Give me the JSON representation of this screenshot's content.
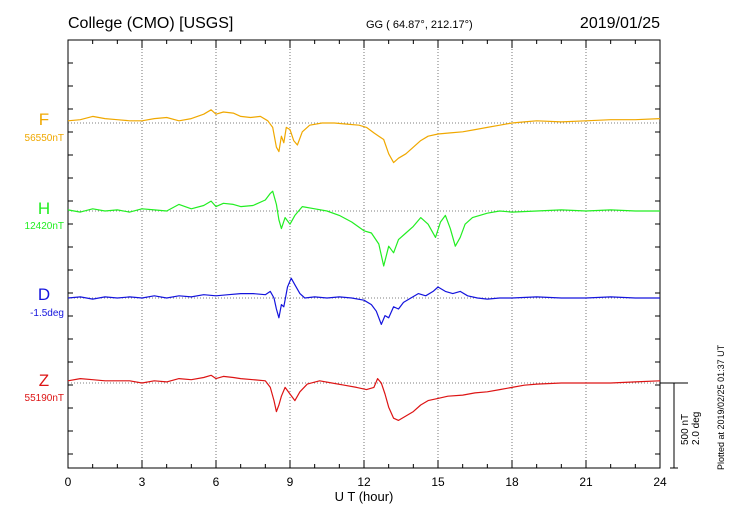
{
  "header": {
    "station": "College (CMO)  [USGS]",
    "coords": "GG ( 64.87°, 212.17°)",
    "date": "2019/01/25"
  },
  "footer": {
    "plotted": "Plotted at 2019/02/25 01:37 UT"
  },
  "chart_data": {
    "type": "line",
    "xlabel": "U T (hour)",
    "xlim": [
      0,
      24
    ],
    "xticks": [
      "0",
      "3",
      "6",
      "9",
      "12",
      "15",
      "18",
      "21",
      "24"
    ],
    "scale_bar": {
      "line1": "500 nT",
      "line2": "2.0 deg"
    },
    "series": [
      {
        "name": "F",
        "baseline_label": "56550nT",
        "color": "#f0a800",
        "points": [
          [
            0,
            0.1
          ],
          [
            0.5,
            0.15
          ],
          [
            1,
            0.3
          ],
          [
            1.5,
            0.2
          ],
          [
            2,
            0.15
          ],
          [
            2.5,
            0.1
          ],
          [
            3,
            0.1
          ],
          [
            3.5,
            0.2
          ],
          [
            4,
            0.25
          ],
          [
            4.5,
            0.1
          ],
          [
            5,
            0.2
          ],
          [
            5.5,
            0.4
          ],
          [
            5.8,
            0.6
          ],
          [
            6,
            0.4
          ],
          [
            6.3,
            0.5
          ],
          [
            6.7,
            0.45
          ],
          [
            7,
            0.3
          ],
          [
            7.4,
            0.25
          ],
          [
            7.8,
            0.3
          ],
          [
            8.1,
            0.1
          ],
          [
            8.3,
            -0.2
          ],
          [
            8.45,
            -1.1
          ],
          [
            8.55,
            -1.3
          ],
          [
            8.65,
            -0.6
          ],
          [
            8.75,
            -0.9
          ],
          [
            8.85,
            -0.2
          ],
          [
            9,
            -0.3
          ],
          [
            9.15,
            -0.8
          ],
          [
            9.3,
            -1.0
          ],
          [
            9.5,
            -0.4
          ],
          [
            9.8,
            -0.1
          ],
          [
            10.3,
            0.0
          ],
          [
            10.8,
            0.0
          ],
          [
            11.3,
            -0.05
          ],
          [
            11.8,
            -0.1
          ],
          [
            12.1,
            -0.2
          ],
          [
            12.4,
            -0.45
          ],
          [
            12.6,
            -0.6
          ],
          [
            12.8,
            -0.75
          ],
          [
            13.0,
            -1.4
          ],
          [
            13.2,
            -1.8
          ],
          [
            13.4,
            -1.6
          ],
          [
            13.7,
            -1.4
          ],
          [
            14.0,
            -1.1
          ],
          [
            14.3,
            -0.8
          ],
          [
            14.6,
            -0.6
          ],
          [
            15.0,
            -0.5
          ],
          [
            15.5,
            -0.45
          ],
          [
            16,
            -0.4
          ],
          [
            16.5,
            -0.3
          ],
          [
            17,
            -0.2
          ],
          [
            17.5,
            -0.1
          ],
          [
            18,
            0.0
          ],
          [
            18.5,
            0.05
          ],
          [
            19,
            0.1
          ],
          [
            20,
            0.05
          ],
          [
            21,
            0.1
          ],
          [
            22,
            0.15
          ],
          [
            23,
            0.15
          ],
          [
            24,
            0.2
          ]
        ]
      },
      {
        "name": "H",
        "baseline_label": "12420nT",
        "color": "#22ee22",
        "points": [
          [
            0,
            0.05
          ],
          [
            0.5,
            -0.05
          ],
          [
            1,
            0.1
          ],
          [
            1.5,
            0.0
          ],
          [
            2,
            0.05
          ],
          [
            2.5,
            -0.05
          ],
          [
            3,
            0.1
          ],
          [
            3.5,
            0.05
          ],
          [
            4,
            0.0
          ],
          [
            4.5,
            0.3
          ],
          [
            5,
            0.1
          ],
          [
            5.5,
            0.25
          ],
          [
            5.8,
            0.45
          ],
          [
            6,
            0.2
          ],
          [
            6.3,
            0.35
          ],
          [
            6.7,
            0.3
          ],
          [
            7,
            0.2
          ],
          [
            7.5,
            0.25
          ],
          [
            8,
            0.5
          ],
          [
            8.2,
            0.8
          ],
          [
            8.3,
            0.9
          ],
          [
            8.45,
            0.3
          ],
          [
            8.55,
            -0.4
          ],
          [
            8.65,
            -0.8
          ],
          [
            8.8,
            -0.3
          ],
          [
            9,
            -0.6
          ],
          [
            9.2,
            -0.2
          ],
          [
            9.5,
            0.2
          ],
          [
            10,
            0.1
          ],
          [
            10.5,
            0.0
          ],
          [
            11,
            -0.2
          ],
          [
            11.5,
            -0.5
          ],
          [
            12,
            -0.9
          ],
          [
            12.3,
            -1.0
          ],
          [
            12.6,
            -1.5
          ],
          [
            12.8,
            -2.5
          ],
          [
            13.0,
            -1.6
          ],
          [
            13.2,
            -1.9
          ],
          [
            13.4,
            -1.3
          ],
          [
            13.7,
            -1.0
          ],
          [
            14.0,
            -0.7
          ],
          [
            14.3,
            -0.3
          ],
          [
            14.6,
            -0.6
          ],
          [
            14.9,
            -1.2
          ],
          [
            15.1,
            -0.5
          ],
          [
            15.3,
            -0.2
          ],
          [
            15.5,
            -0.8
          ],
          [
            15.7,
            -1.6
          ],
          [
            15.9,
            -1.2
          ],
          [
            16.1,
            -0.6
          ],
          [
            16.4,
            -0.3
          ],
          [
            17,
            -0.1
          ],
          [
            17.5,
            0.0
          ],
          [
            18,
            -0.05
          ],
          [
            19,
            0.0
          ],
          [
            20,
            0.05
          ],
          [
            21,
            0.0
          ],
          [
            22,
            0.05
          ],
          [
            23,
            0.0
          ],
          [
            24,
            0.0
          ]
        ]
      },
      {
        "name": "D",
        "baseline_label": "-1.5deg",
        "color": "#1414dd",
        "points": [
          [
            0,
            0.0
          ],
          [
            0.5,
            0.05
          ],
          [
            1,
            -0.05
          ],
          [
            1.5,
            0.05
          ],
          [
            2,
            0.0
          ],
          [
            2.5,
            0.05
          ],
          [
            3,
            0.0
          ],
          [
            3.5,
            0.1
          ],
          [
            4,
            0.0
          ],
          [
            4.5,
            0.1
          ],
          [
            5,
            0.05
          ],
          [
            5.5,
            0.15
          ],
          [
            6,
            0.1
          ],
          [
            6.5,
            0.15
          ],
          [
            7,
            0.2
          ],
          [
            7.5,
            0.2
          ],
          [
            8,
            0.15
          ],
          [
            8.2,
            0.3
          ],
          [
            8.35,
            0.0
          ],
          [
            8.45,
            -0.5
          ],
          [
            8.55,
            -0.9
          ],
          [
            8.65,
            -0.3
          ],
          [
            8.75,
            -0.4
          ],
          [
            8.9,
            0.5
          ],
          [
            9.05,
            0.9
          ],
          [
            9.2,
            0.6
          ],
          [
            9.4,
            0.2
          ],
          [
            9.6,
            0.0
          ],
          [
            10,
            0.05
          ],
          [
            10.5,
            0.0
          ],
          [
            11,
            0.05
          ],
          [
            11.5,
            0.0
          ],
          [
            12,
            -0.1
          ],
          [
            12.3,
            -0.3
          ],
          [
            12.5,
            -0.6
          ],
          [
            12.7,
            -1.2
          ],
          [
            12.85,
            -0.8
          ],
          [
            13.0,
            -0.9
          ],
          [
            13.2,
            -0.4
          ],
          [
            13.4,
            -0.5
          ],
          [
            13.6,
            -0.2
          ],
          [
            13.9,
            0.0
          ],
          [
            14.2,
            0.2
          ],
          [
            14.5,
            0.1
          ],
          [
            14.8,
            0.3
          ],
          [
            15.0,
            0.5
          ],
          [
            15.3,
            0.3
          ],
          [
            15.6,
            0.2
          ],
          [
            15.9,
            0.3
          ],
          [
            16.2,
            0.1
          ],
          [
            16.6,
            0.0
          ],
          [
            17,
            -0.05
          ],
          [
            17.5,
            0.0
          ],
          [
            18,
            0.0
          ],
          [
            19,
            0.05
          ],
          [
            20,
            0.0
          ],
          [
            21,
            0.0
          ],
          [
            22,
            0.05
          ],
          [
            23,
            0.0
          ],
          [
            24,
            0.0
          ]
        ]
      },
      {
        "name": "Z",
        "baseline_label": "55190nT",
        "color": "#dd1414",
        "points": [
          [
            0,
            0.1
          ],
          [
            0.5,
            0.2
          ],
          [
            1,
            0.15
          ],
          [
            1.5,
            0.1
          ],
          [
            2,
            0.1
          ],
          [
            2.5,
            0.1
          ],
          [
            3,
            0.0
          ],
          [
            3.5,
            0.1
          ],
          [
            4,
            0.05
          ],
          [
            4.5,
            0.2
          ],
          [
            5,
            0.15
          ],
          [
            5.5,
            0.25
          ],
          [
            5.8,
            0.35
          ],
          [
            6,
            0.2
          ],
          [
            6.3,
            0.3
          ],
          [
            6.7,
            0.25
          ],
          [
            7,
            0.2
          ],
          [
            7.5,
            0.15
          ],
          [
            8,
            0.1
          ],
          [
            8.2,
            -0.2
          ],
          [
            8.35,
            -0.8
          ],
          [
            8.45,
            -1.3
          ],
          [
            8.55,
            -1.0
          ],
          [
            8.65,
            -0.6
          ],
          [
            8.8,
            -0.2
          ],
          [
            9.0,
            -0.5
          ],
          [
            9.2,
            -0.8
          ],
          [
            9.4,
            -0.4
          ],
          [
            9.7,
            -0.05
          ],
          [
            10.2,
            0.1
          ],
          [
            10.7,
            0.0
          ],
          [
            11.2,
            -0.1
          ],
          [
            11.7,
            -0.2
          ],
          [
            12.1,
            -0.3
          ],
          [
            12.4,
            -0.2
          ],
          [
            12.55,
            0.2
          ],
          [
            12.7,
            0.0
          ],
          [
            12.85,
            -0.5
          ],
          [
            13.0,
            -1.1
          ],
          [
            13.2,
            -1.6
          ],
          [
            13.4,
            -1.7
          ],
          [
            13.7,
            -1.5
          ],
          [
            14.0,
            -1.3
          ],
          [
            14.3,
            -1.0
          ],
          [
            14.6,
            -0.8
          ],
          [
            15.0,
            -0.7
          ],
          [
            15.4,
            -0.6
          ],
          [
            16,
            -0.55
          ],
          [
            16.5,
            -0.45
          ],
          [
            17,
            -0.4
          ],
          [
            17.5,
            -0.3
          ],
          [
            18,
            -0.2
          ],
          [
            18.5,
            -0.1
          ],
          [
            19,
            -0.05
          ],
          [
            20,
            0.0
          ],
          [
            21,
            0.0
          ],
          [
            22,
            0.0
          ],
          [
            23,
            0.05
          ],
          [
            24,
            0.1
          ]
        ]
      }
    ]
  }
}
